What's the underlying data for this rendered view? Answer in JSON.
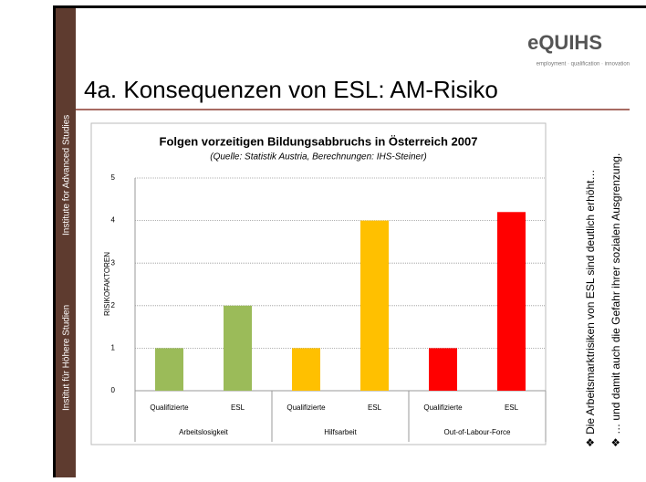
{
  "sidebar": [
    "Institute for Advanced Studies",
    "Institut für Höhere Studien"
  ],
  "logo": {
    "name": "eQUIHS",
    "tagline": "employment · qualification · innovation"
  },
  "title": "4a. Konsequenzen von ESL: AM-Risiko",
  "bullets": [
    "Die Arbeitsmarktrisiken von ESL sind deutlich erhöht…",
    "… und damit auch die Gefahr ihrer sozialen Ausgrenzung."
  ],
  "chart_data": {
    "type": "bar",
    "title": "Folgen vorzeitigen Bildungsabbruchs in Österreich 2007",
    "subtitle": "(Quelle: Statistik Austria, Berechnungen: IHS-Steiner)",
    "y_label": "RISIKOFAKTOREN",
    "categories": [
      "Qualifizierte",
      "ESL",
      "Qualifizierte",
      "ESL",
      "Qualifizierte",
      "ESL"
    ],
    "groups": [
      "Arbeitslosigkeit",
      "Hilfsarbeit",
      "Out-of-Labour-Force"
    ],
    "values": [
      1,
      2,
      1,
      4,
      1,
      4.2
    ],
    "colors": [
      "#9bbb59",
      "#9bbb59",
      "#ffc000",
      "#ffc000",
      "#ff0000",
      "#ff0000"
    ],
    "ylim": [
      0,
      5
    ],
    "yticks": [
      0,
      1,
      2,
      3,
      4,
      5
    ],
    "grid": true
  }
}
